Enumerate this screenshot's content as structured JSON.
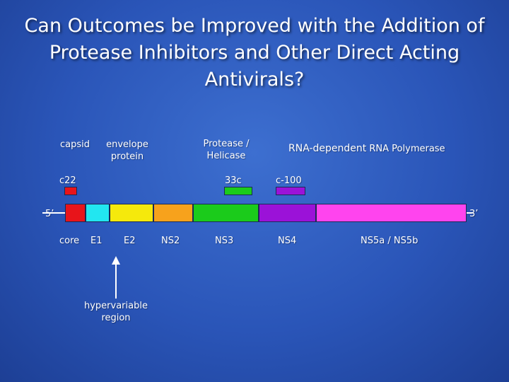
{
  "title": {
    "line1": "Can Outcomes be Improved with the Addition of",
    "line2": "Protease Inhibitors and Other Direct Acting",
    "line3": "Antivirals?"
  },
  "top_labels": {
    "capsid": "capsid",
    "envelope_line1": "envelope",
    "envelope_line2": "protein",
    "protease_line1": "Protease /",
    "protease_line2": "Helicase",
    "polymerase_bold": "RNA-dependent",
    "polymerase_rest": " RNA Polymerase"
  },
  "antigens": {
    "c22": "c22",
    "c33c": "33c",
    "c100": "c-100"
  },
  "ends": {
    "five_prime": "5’",
    "three_prime": "3’"
  },
  "segments": [
    {
      "name": "core",
      "color": "#e8141a"
    },
    {
      "name": "E1",
      "color": "#22e6f0"
    },
    {
      "name": "E2",
      "color": "#f5e90c"
    },
    {
      "name": "NS2",
      "color": "#f7a21c"
    },
    {
      "name": "NS3",
      "color": "#1bcb1b"
    },
    {
      "name": "NS4",
      "color": "#9b12d8"
    },
    {
      "name": "NS5a / NS5b",
      "color": "#ff44ee"
    }
  ],
  "gene_labels": {
    "core": "core",
    "e1": "E1",
    "e2": "E2",
    "ns2": "NS2",
    "ns3": "NS3",
    "ns4": "NS4",
    "ns5": "NS5a / NS5b"
  },
  "annotation": {
    "line1": "hypervariable",
    "line2": "region"
  }
}
